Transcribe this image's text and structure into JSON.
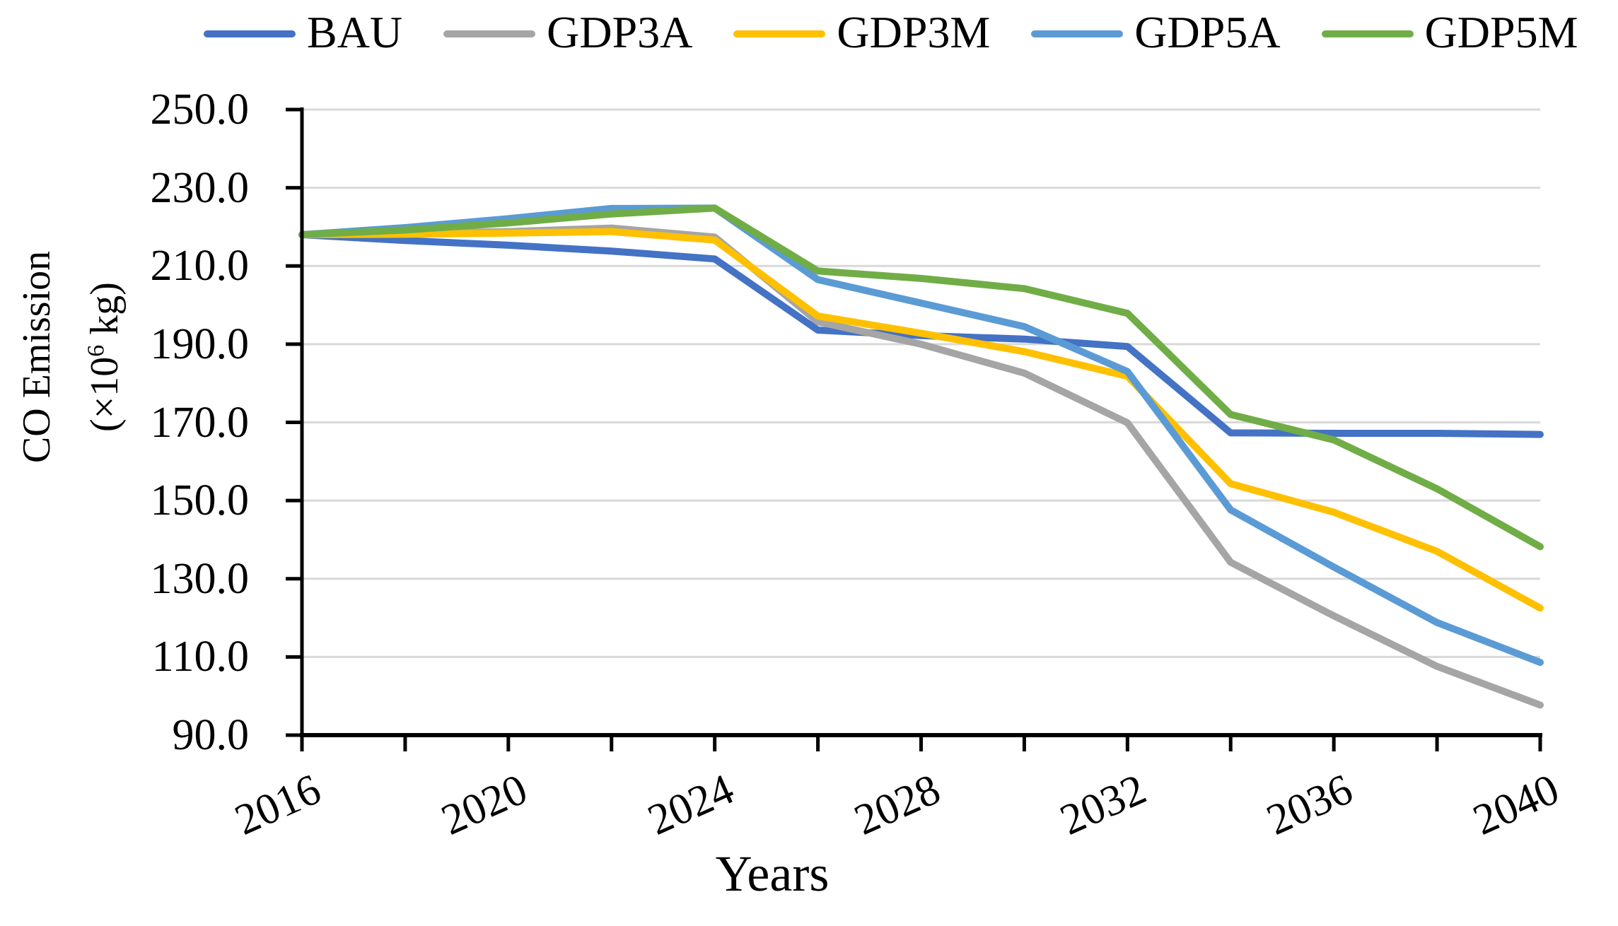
{
  "figure": {
    "xlabel": "Years",
    "ylabel": {
      "line1": "CO Emission",
      "line2_prefix": "(×10",
      "line2_sup": "6",
      "line2_suffix": " kg)"
    }
  },
  "chart_data": {
    "type": "line",
    "title": "",
    "xlabel": "Years",
    "ylabel": "CO Emission (×10^6 kg)",
    "x": [
      2016,
      2018,
      2020,
      2022,
      2024,
      2026,
      2028,
      2030,
      2032,
      2034,
      2036,
      2038,
      2040
    ],
    "x_tick_labels": [
      "2016",
      "2020",
      "2024",
      "2028",
      "2032",
      "2036",
      "2040"
    ],
    "x_label_every_nth_point": 2,
    "x_minor_tick_step_years": 2,
    "y_tick_labels": [
      "250.0",
      "230.0",
      "210.0",
      "190.0",
      "170.0",
      "150.0",
      "130.0",
      "110.0",
      "90.0"
    ],
    "ylim": [
      90,
      250
    ],
    "xlim": [
      2016,
      2040
    ],
    "grid": true,
    "gridline_color": "#D9D9D9",
    "axis_color": "#000000",
    "legend_position": "top",
    "series": [
      {
        "name": "BAU",
        "color": "#4472C4",
        "values": [
          218.0,
          216.5,
          215.3,
          213.8,
          211.8,
          193.6,
          192.2,
          191.3,
          189.4,
          167.3,
          167.2,
          167.2,
          166.9
        ]
      },
      {
        "name": "GDP3A",
        "color": "#A5A5A5",
        "values": [
          218.0,
          218.3,
          218.8,
          219.7,
          217.4,
          195.7,
          190.0,
          182.6,
          169.9,
          134.2,
          120.5,
          107.6,
          97.7
        ]
      },
      {
        "name": "GDP3M",
        "color": "#FFC000",
        "values": [
          218.0,
          218.1,
          218.4,
          218.8,
          216.6,
          197.2,
          192.8,
          188.1,
          181.8,
          154.3,
          147.0,
          137.0,
          122.5
        ]
      },
      {
        "name": "GDP5A",
        "color": "#5B9BD5",
        "values": [
          218.0,
          219.8,
          222.1,
          224.7,
          224.8,
          206.5,
          200.5,
          194.5,
          183.0,
          147.6,
          133.0,
          118.8,
          108.6
        ]
      },
      {
        "name": "GDP5M",
        "color": "#70AD47",
        "values": [
          218.0,
          219.2,
          221.0,
          223.3,
          224.8,
          208.7,
          206.8,
          204.2,
          197.9,
          172.0,
          165.5,
          153.0,
          138.2
        ]
      }
    ]
  }
}
